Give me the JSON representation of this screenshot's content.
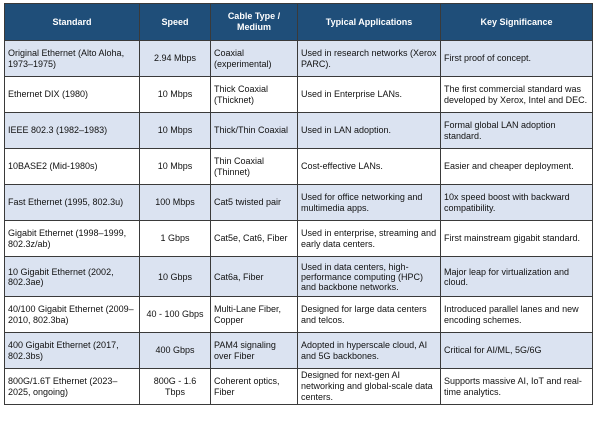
{
  "table": {
    "headers": [
      "Standard",
      "Speed",
      "Cable Type / Medium",
      "Typical Applications",
      "Key Significance"
    ],
    "rows": [
      [
        "Original Ethernet (Alto Aloha, 1973–1975)",
        "2.94 Mbps",
        "Coaxial (experimental)",
        "Used in research networks (Xerox PARC).",
        "First proof of concept."
      ],
      [
        "Ethernet DIX (1980)",
        "10 Mbps",
        "Thick Coaxial (Thicknet)",
        "Used in Enterprise LANs.",
        "The first commercial standard was developed by Xerox, Intel and DEC."
      ],
      [
        "IEEE 802.3 (1982–1983)",
        "10 Mbps",
        "Thick/Thin Coaxial",
        "Used in LAN adoption.",
        "Formal global LAN adoption standard."
      ],
      [
        "10BASE2 (Mid-1980s)",
        "10 Mbps",
        "Thin Coaxial (Thinnet)",
        "Cost-effective LANs.",
        "Easier and cheaper deployment."
      ],
      [
        "Fast Ethernet (1995, 802.3u)",
        "100 Mbps",
        "Cat5 twisted pair",
        "Used for office networking and multimedia apps.",
        "10x speed boost with backward compatibility."
      ],
      [
        "Gigabit Ethernet (1998–1999, 802.3z/ab)",
        "1 Gbps",
        "Cat5e, Cat6, Fiber",
        "Used in enterprise, streaming and early data centers.",
        "First mainstream gigabit standard."
      ],
      [
        "10 Gigabit Ethernet (2002, 802.3ae)",
        "10 Gbps",
        "Cat6a, Fiber",
        "Used in data centers, high-performance computing (HPC) and backbone networks.",
        "Major leap for virtualization and cloud."
      ],
      [
        "40/100 Gigabit Ethernet (2009–2010, 802.3ba)",
        "40 - 100 Gbps",
        "Multi-Lane Fiber, Copper",
        "Designed for large data centers and telcos.",
        "Introduced parallel lanes and new encoding schemes."
      ],
      [
        "400 Gigabit Ethernet (2017, 802.3bs)",
        "400 Gbps",
        "PAM4 signaling over Fiber",
        "Adopted in hyperscale cloud, AI and 5G backbones.",
        "Critical for AI/ML, 5G/6G"
      ],
      [
        "800G/1.6T Ethernet (2023–2025, ongoing)",
        "800G - 1.6 Tbps",
        "Coherent optics, Fiber",
        "Designed for next-gen AI networking and global-scale data centers.",
        "Supports massive AI, IoT and real-time analytics."
      ]
    ]
  }
}
